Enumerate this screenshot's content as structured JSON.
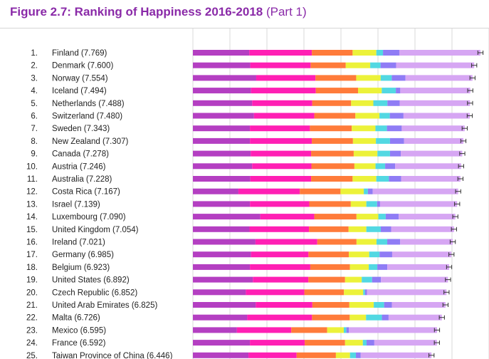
{
  "title": "Figure 2.7: Ranking of Happiness 2016-2018",
  "subtitle": "(Part 1)",
  "colors": {
    "title": "#8a2aa8",
    "segments": [
      "#b43fc2",
      "#ff1fb4",
      "#ff7b3a",
      "#ecf23a",
      "#52d8e2",
      "#8f7cf5",
      "#d6a6f3"
    ]
  },
  "chart_data": {
    "type": "bar",
    "stacked": true,
    "orientation": "horizontal",
    "grid": true,
    "xlim": [
      0,
      8
    ],
    "segment_colors": [
      "#b43fc2",
      "#ff1fb4",
      "#ff7b3a",
      "#ecf23a",
      "#52d8e2",
      "#8f7cf5",
      "#d6a6f3"
    ],
    "rows": [
      {
        "rank": "1.",
        "label": "Finland (7.769)",
        "value": 7.769,
        "segments": [
          1.52,
          1.69,
          1.1,
          0.64,
          0.18,
          0.44,
          2.19
        ]
      },
      {
        "rank": "2.",
        "label": "Denmark (7.600)",
        "value": 7.6,
        "segments": [
          1.55,
          1.63,
          0.95,
          0.66,
          0.28,
          0.42,
          2.11
        ]
      },
      {
        "rank": "3.",
        "label": "Norway (7.554)",
        "value": 7.554,
        "segments": [
          1.71,
          1.6,
          1.1,
          0.66,
          0.3,
          0.37,
          1.81
        ]
      },
      {
        "rank": "4.",
        "label": "Iceland (7.494)",
        "value": 7.494,
        "segments": [
          1.57,
          1.75,
          1.14,
          0.64,
          0.38,
          0.12,
          1.89
        ]
      },
      {
        "rank": "5.",
        "label": "Netherlands (7.488)",
        "value": 7.488,
        "segments": [
          1.6,
          1.62,
          1.05,
          0.6,
          0.38,
          0.33,
          1.9
        ]
      },
      {
        "rank": "6.",
        "label": "Switzerland (7.480)",
        "value": 7.48,
        "segments": [
          1.65,
          1.63,
          1.11,
          0.65,
          0.28,
          0.37,
          1.79
        ]
      },
      {
        "rank": "7.",
        "label": "Sweden (7.343)",
        "value": 7.343,
        "segments": [
          1.54,
          1.62,
          1.13,
          0.64,
          0.31,
          0.4,
          1.7
        ]
      },
      {
        "rank": "8.",
        "label": "New Zealand (7.307)",
        "value": 7.307,
        "segments": [
          1.54,
          1.67,
          1.11,
          0.62,
          0.38,
          0.38,
          1.6
        ]
      },
      {
        "rank": "9.",
        "label": "Canada (7.278)",
        "value": 7.278,
        "segments": [
          1.56,
          1.63,
          1.15,
          0.64,
          0.34,
          0.29,
          1.66
        ]
      },
      {
        "rank": "10.",
        "label": "Austria (7.246)",
        "value": 7.246,
        "segments": [
          1.6,
          1.6,
          1.16,
          0.57,
          0.26,
          0.27,
          1.78
        ]
      },
      {
        "rank": "11.",
        "label": "Australia (7.228)",
        "value": 7.228,
        "segments": [
          1.55,
          1.64,
          1.12,
          0.64,
          0.34,
          0.33,
          1.6
        ]
      },
      {
        "rank": "12.",
        "label": "Costa Rica (7.167)",
        "value": 7.167,
        "segments": [
          1.23,
          1.66,
          1.1,
          0.63,
          0.11,
          0.13,
          2.31
        ]
      },
      {
        "rank": "13.",
        "label": "Israel (7.139)",
        "value": 7.139,
        "segments": [
          1.54,
          1.6,
          1.12,
          0.42,
          0.29,
          0.08,
          2.08
        ]
      },
      {
        "rank": "14.",
        "label": "Luxembourg (7.090)",
        "value": 7.09,
        "segments": [
          1.82,
          1.46,
          1.14,
          0.59,
          0.2,
          0.35,
          1.53
        ]
      },
      {
        "rank": "15.",
        "label": "United Kingdom (7.054)",
        "value": 7.054,
        "segments": [
          1.53,
          1.61,
          1.07,
          0.48,
          0.39,
          0.28,
          1.7
        ]
      },
      {
        "rank": "16.",
        "label": "Ireland (7.021)",
        "value": 7.021,
        "segments": [
          1.69,
          1.67,
          1.06,
          0.54,
          0.29,
          0.35,
          1.42
        ]
      },
      {
        "rank": "17.",
        "label": "Germany (6.985)",
        "value": 6.985,
        "segments": [
          1.57,
          1.55,
          1.09,
          0.55,
          0.28,
          0.34,
          1.6
        ]
      },
      {
        "rank": "18.",
        "label": "Belgium (6.923)",
        "value": 6.923,
        "segments": [
          1.54,
          1.63,
          1.07,
          0.51,
          0.23,
          0.27,
          1.67
        ]
      },
      {
        "rank": "19.",
        "label": "United States (6.892)",
        "value": 6.892,
        "segments": [
          1.62,
          1.5,
          0.99,
          0.45,
          0.28,
          0.24,
          1.81
        ]
      },
      {
        "rank": "20.",
        "label": "Czech Republic (6.852)",
        "value": 6.852,
        "segments": [
          1.43,
          1.58,
          1.07,
          0.52,
          0.05,
          0.05,
          2.15
        ]
      },
      {
        "rank": "21.",
        "label": "United Arab Emirates (6.825)",
        "value": 6.825,
        "segments": [
          1.7,
          1.53,
          1.0,
          0.66,
          0.28,
          0.21,
          1.45
        ]
      },
      {
        "rank": "22.",
        "label": "Malta (6.726)",
        "value": 6.726,
        "segments": [
          1.47,
          1.75,
          1.02,
          0.44,
          0.43,
          0.18,
          1.44
        ]
      },
      {
        "rank": "23.",
        "label": "Mexico (6.595)",
        "value": 6.595,
        "segments": [
          1.19,
          1.47,
          0.97,
          0.45,
          0.07,
          0.07,
          2.38
        ]
      },
      {
        "rank": "24.",
        "label": "France (6.592)",
        "value": 6.592,
        "segments": [
          1.54,
          1.48,
          1.09,
          0.48,
          0.1,
          0.21,
          1.69
        ]
      },
      {
        "rank": "25.",
        "label": "Taiwan Province of China (6.446)",
        "value": 6.446,
        "segments": [
          1.5,
          1.3,
          1.06,
          0.38,
          0.16,
          0.13,
          1.91
        ]
      }
    ]
  }
}
